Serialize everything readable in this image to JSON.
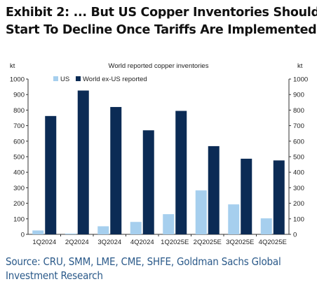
{
  "headline": {
    "line1": "Exhibit 2: ... But US Copper Inventories Should",
    "line2": "Start To Decline Once Tariffs Are Implemented"
  },
  "source": {
    "line1": "Source: CRU, SMM, LME, CME, SHFE, Goldman Sachs Global",
    "line2": "Investment Research"
  },
  "colors": {
    "us": "#a6cfee",
    "world": "#0b2b55",
    "axis": "#333333"
  },
  "chart_data": {
    "type": "bar",
    "title": "World reported copper inventories",
    "ylabel_left": "kt",
    "ylabel_right": "kt",
    "ylim": [
      0,
      1000
    ],
    "yticks": [
      0,
      100,
      200,
      300,
      400,
      500,
      600,
      700,
      800,
      900,
      1000
    ],
    "categories": [
      "1Q2024",
      "2Q2024",
      "3Q2024",
      "4Q2024",
      "1Q2025E",
      "2Q2025E",
      "3Q2025E",
      "4Q2025E"
    ],
    "series": [
      {
        "name": "US",
        "values": [
          25,
          5,
          52,
          80,
          130,
          283,
          193,
          103
        ]
      },
      {
        "name": "World ex-US reported",
        "values": [
          762,
          926,
          820,
          670,
          795,
          568,
          487,
          476
        ]
      }
    ],
    "legend_position": "top-left",
    "grid": false
  }
}
